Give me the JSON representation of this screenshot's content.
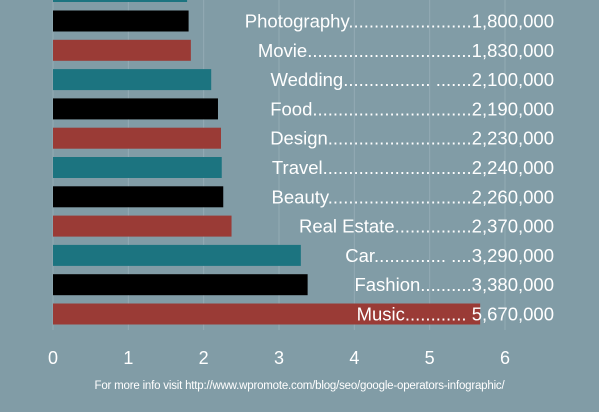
{
  "chart_data": {
    "type": "bar",
    "orientation": "horizontal",
    "categories": [
      "Photography",
      "Movie",
      "Wedding",
      "Food",
      "Design",
      "Travel",
      "Beauty",
      "Real Estate",
      "Car",
      "Fashion",
      "Music"
    ],
    "label_texts": [
      "Photography........................1,800,000",
      "Movie................................1,830,000",
      "Wedding................. .......2,100,000",
      "Food...............................2,190,000",
      "Design............................2,230,000",
      "Travel.............................2,240,000",
      "Beauty............................2,260,000",
      "Real Estate...............2,370,000",
      "Car.............. ....3,290,000",
      "Fashion..........3,380,000",
      "Music............ 5,670,000"
    ],
    "values": [
      1.8,
      1.83,
      2.1,
      2.19,
      2.23,
      2.24,
      2.26,
      2.37,
      3.29,
      3.38,
      5.67
    ],
    "bar_colors": [
      "#000000",
      "#9a3b36",
      "#1c7480",
      "#000000",
      "#9a3b36",
      "#1c7480",
      "#000000",
      "#9a3b36",
      "#1c7480",
      "#000000",
      "#9a3b36"
    ],
    "xlim": [
      0,
      6
    ],
    "x_ticks": [
      0,
      1,
      2,
      3,
      4,
      5,
      6
    ],
    "x_tick_labels": [
      "0",
      "1",
      "2",
      "3",
      "4",
      "5",
      "6"
    ],
    "grid": true,
    "colors": {
      "background": "#819ca6",
      "grid": "#93abb4",
      "text": "#ffffff"
    }
  },
  "footer_text": "For more info visit http://www.wpromote.com/blog/seo/google-operators-infographic/"
}
